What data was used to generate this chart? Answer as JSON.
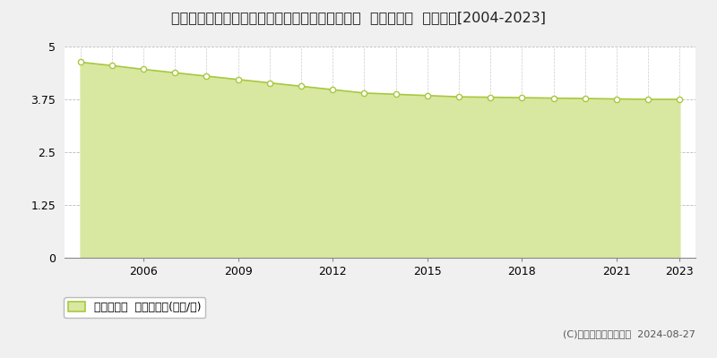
{
  "title": "茨城県那珂郡東海村大字豊岡字西の妻４６０番２  基準地価格  地価推移[2004-2023]",
  "years": [
    2004,
    2005,
    2006,
    2007,
    2008,
    2009,
    2010,
    2011,
    2012,
    2013,
    2014,
    2015,
    2016,
    2017,
    2018,
    2019,
    2020,
    2021,
    2022,
    2023
  ],
  "values": [
    4.63,
    4.55,
    4.46,
    4.38,
    4.3,
    4.22,
    4.14,
    4.06,
    3.98,
    3.9,
    3.87,
    3.84,
    3.81,
    3.8,
    3.79,
    3.78,
    3.77,
    3.76,
    3.75,
    3.75
  ],
  "line_color": "#a8c840",
  "fill_color": "#d8e8a0",
  "marker_color": "#ffffff",
  "marker_edge_color": "#a8c840",
  "grid_color": "#aaaaaa",
  "bg_color": "#f0f0f0",
  "plot_bg_color": "#ffffff",
  "ylim": [
    0,
    5
  ],
  "yticks": [
    0,
    1.25,
    2.5,
    3.75,
    5
  ],
  "ytick_labels": [
    "0",
    "1.25",
    "2.5",
    "3.75",
    "5"
  ],
  "xtick_years": [
    2006,
    2009,
    2012,
    2015,
    2018,
    2021,
    2023
  ],
  "legend_label": "基準地価格  平均坪単価(万円/坪)",
  "copyright_text": "(C)土地価格ドットコム  2024-08-27",
  "title_fontsize": 11.5,
  "tick_fontsize": 9,
  "legend_fontsize": 9,
  "copyright_fontsize": 8
}
